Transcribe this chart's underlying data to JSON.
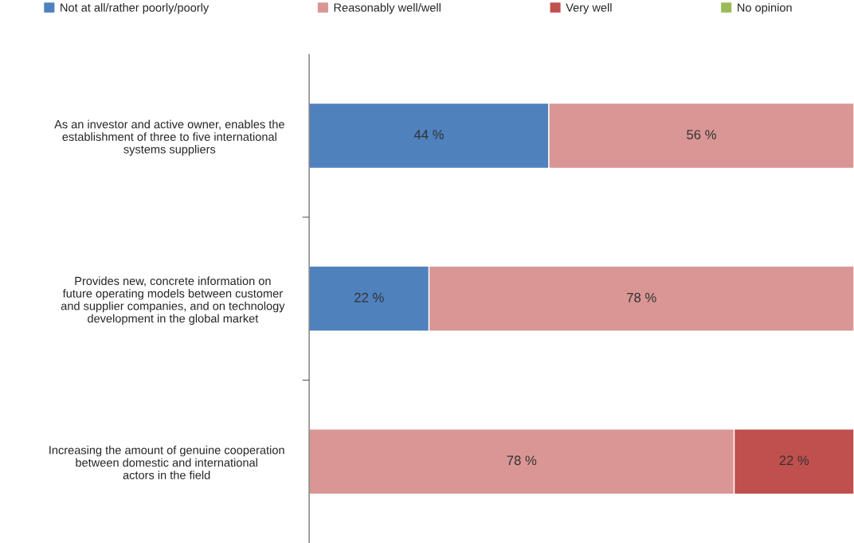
{
  "chart_data": {
    "type": "bar",
    "orientation": "horizontal",
    "stacked": true,
    "legend": "top",
    "categories": [
      "As an investor and active owner, enables the\nestablishment of three to five international\nsystems suppliers",
      "Provides new, concrete information on\nfuture operating models between customer\nand supplier companies, and on technology\ndevelopment in the global market",
      "Increasing the amount of genuine cooperation\nbetween domestic and international\nactors in the field"
    ],
    "series": [
      {
        "name": "Not at all/rather poorly/poorly",
        "color": "#4f81bd",
        "values": [
          44,
          22,
          null
        ],
        "value_labels": [
          "44 %",
          "22 %",
          null
        ]
      },
      {
        "name": "Reasonably well/well",
        "color": "#d99694",
        "values": [
          56,
          78,
          78
        ],
        "value_labels": [
          "56 %",
          "78 %",
          "78 %"
        ]
      },
      {
        "name": "Very well",
        "color": "#c0504d",
        "values": [
          null,
          null,
          22
        ],
        "value_labels": [
          null,
          null,
          "22 %"
        ]
      },
      {
        "name": "No opinion",
        "color": "#9bbb59",
        "values": [
          null,
          null,
          null
        ],
        "value_labels": [
          null,
          null,
          null
        ]
      }
    ]
  }
}
